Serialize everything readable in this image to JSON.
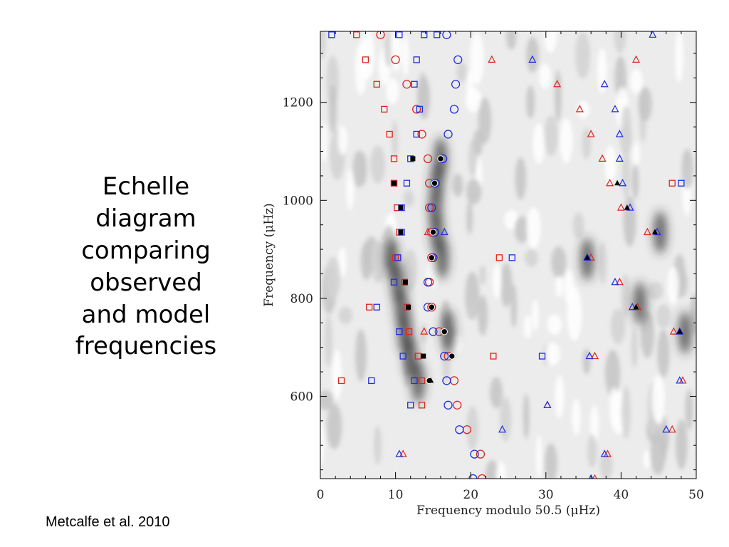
{
  "slide": {
    "title": "Echelle\ndiagram\ncomparing\nobserved\nand model\nfrequencies",
    "citation": "Metcalfe et al. 2010"
  },
  "chart_data": {
    "type": "scatter",
    "subtype": "echelle diagram over grayscale power-density contour background",
    "xlabel": "Frequency modulo 50.5 (μHz)",
    "ylabel": "Frequency (μHz)",
    "xlim": [
      0,
      50
    ],
    "ylim": [
      432,
      1345
    ],
    "x_ticks": [
      0,
      10,
      20,
      30,
      40,
      50
    ],
    "y_ticks": [
      600,
      800,
      1000,
      1200
    ],
    "grid": false,
    "legend": "none",
    "colors": {
      "red": "#e0261f",
      "blue": "#1f2ee0",
      "black": "#000000",
      "background_dark": "#3a3a3a"
    },
    "series": [
      {
        "marker": "circle",
        "color": "red",
        "points": [
          [
            8,
            1338
          ],
          [
            10,
            1287
          ],
          [
            11.5,
            1237
          ],
          [
            12.8,
            1186
          ],
          [
            13.5,
            1135
          ],
          [
            14.3,
            1085
          ],
          [
            14.5,
            1035
          ],
          [
            14.5,
            985
          ],
          [
            14.8,
            935
          ],
          [
            14.8,
            883
          ],
          [
            14.5,
            833
          ],
          [
            14.8,
            782
          ],
          [
            15.8,
            732
          ],
          [
            17,
            682
          ],
          [
            17.8,
            632
          ],
          [
            18.2,
            582
          ],
          [
            19.5,
            532
          ],
          [
            21.3,
            482
          ],
          [
            21.5,
            432
          ]
        ]
      },
      {
        "marker": "circle",
        "color": "blue",
        "points": [
          [
            16.8,
            1338
          ],
          [
            18.3,
            1287
          ],
          [
            18,
            1237
          ],
          [
            17.8,
            1186
          ],
          [
            17,
            1135
          ],
          [
            16.3,
            1085
          ],
          [
            15.3,
            1035
          ],
          [
            14.8,
            985
          ],
          [
            15.2,
            935
          ],
          [
            15,
            883
          ],
          [
            14.3,
            833
          ],
          [
            14.3,
            782
          ],
          [
            15,
            732
          ],
          [
            16.5,
            682
          ],
          [
            16.8,
            632
          ],
          [
            17,
            582
          ],
          [
            18.5,
            532
          ],
          [
            20.5,
            482
          ],
          [
            20.3,
            432
          ]
        ]
      },
      {
        "marker": "square",
        "color": "red",
        "points": [
          [
            4.8,
            1338
          ],
          [
            6,
            1287
          ],
          [
            7.5,
            1237
          ],
          [
            8.5,
            1186
          ],
          [
            9.2,
            1135
          ],
          [
            9.8,
            1085
          ],
          [
            9.8,
            1035
          ],
          [
            10.2,
            985
          ],
          [
            10.5,
            935
          ],
          [
            10,
            883
          ],
          [
            11.2,
            833
          ],
          [
            11.5,
            782
          ],
          [
            11.8,
            732
          ],
          [
            13,
            682
          ],
          [
            13.5,
            632
          ],
          [
            13.5,
            582
          ],
          [
            2.8,
            632
          ],
          [
            6.5,
            782
          ],
          [
            23.8,
            883
          ],
          [
            23,
            682
          ],
          [
            46.8,
            1035
          ]
        ]
      },
      {
        "marker": "square",
        "color": "blue",
        "points": [
          [
            1.5,
            1338
          ],
          [
            10.5,
            1338
          ],
          [
            13.8,
            1338
          ],
          [
            15.5,
            1338
          ],
          [
            12.8,
            1287
          ],
          [
            12.5,
            1237
          ],
          [
            13.2,
            1186
          ],
          [
            12.8,
            1135
          ],
          [
            12,
            1085
          ],
          [
            11.5,
            1035
          ],
          [
            10.8,
            985
          ],
          [
            10.8,
            935
          ],
          [
            10.3,
            883
          ],
          [
            9.8,
            833
          ],
          [
            7.5,
            782
          ],
          [
            10.5,
            732
          ],
          [
            11,
            682
          ],
          [
            12.5,
            632
          ],
          [
            12,
            582
          ],
          [
            6.8,
            632
          ],
          [
            25.5,
            883
          ],
          [
            29.5,
            682
          ],
          [
            48,
            1035
          ]
        ]
      },
      {
        "marker": "triangle",
        "color": "red",
        "points": [
          [
            22.8,
            1287
          ],
          [
            42,
            1287
          ],
          [
            31.5,
            1237
          ],
          [
            34.5,
            1186
          ],
          [
            36,
            1135
          ],
          [
            37.5,
            1085
          ],
          [
            38.5,
            1035
          ],
          [
            40,
            985
          ],
          [
            43.5,
            935
          ],
          [
            36,
            883
          ],
          [
            39.8,
            833
          ],
          [
            42.2,
            782
          ],
          [
            47,
            732
          ],
          [
            36.5,
            682
          ],
          [
            48.2,
            632
          ],
          [
            30.2,
            582
          ],
          [
            46.8,
            532
          ],
          [
            38.2,
            482
          ],
          [
            36.5,
            432
          ],
          [
            13.8,
            732
          ],
          [
            14.3,
            935
          ],
          [
            11,
            482
          ]
        ]
      },
      {
        "marker": "triangle",
        "color": "blue",
        "points": [
          [
            28.2,
            1287
          ],
          [
            37.8,
            1237
          ],
          [
            39.2,
            1186
          ],
          [
            39.8,
            1135
          ],
          [
            39.8,
            1085
          ],
          [
            40.2,
            1035
          ],
          [
            41.2,
            985
          ],
          [
            44.8,
            935
          ],
          [
            35.5,
            883
          ],
          [
            39.2,
            833
          ],
          [
            41.5,
            782
          ],
          [
            47.8,
            732
          ],
          [
            35.8,
            682
          ],
          [
            47.8,
            632
          ],
          [
            30.2,
            582
          ],
          [
            24.2,
            532
          ],
          [
            46,
            532
          ],
          [
            37.8,
            482
          ],
          [
            10.5,
            482
          ],
          [
            36,
            432
          ],
          [
            16.5,
            935
          ],
          [
            44.2,
            1338
          ]
        ]
      },
      {
        "marker": "filled-circle",
        "color": "black",
        "points": [
          [
            16,
            1085
          ],
          [
            15.2,
            1035
          ],
          [
            15,
            935
          ],
          [
            14.8,
            883
          ],
          [
            14.8,
            782
          ],
          [
            16.5,
            732
          ],
          [
            17.5,
            682
          ],
          [
            14.5,
            632
          ]
        ]
      },
      {
        "marker": "filled-square",
        "color": "black",
        "points": [
          [
            12.3,
            1085
          ],
          [
            9.8,
            1035
          ],
          [
            10.7,
            985
          ],
          [
            10.7,
            935
          ],
          [
            11.3,
            833
          ],
          [
            11.7,
            782
          ],
          [
            13.7,
            682
          ]
        ]
      },
      {
        "marker": "filled-triangle",
        "color": "black",
        "points": [
          [
            39.5,
            1035
          ],
          [
            40.8,
            985
          ],
          [
            44.5,
            935
          ],
          [
            35.5,
            883
          ],
          [
            42,
            782
          ],
          [
            47.8,
            732
          ],
          [
            14.7,
            632
          ]
        ]
      }
    ],
    "background_ridges": [
      {
        "x": [
          9.5,
          10.3,
          10.8,
          11.2,
          12,
          13
        ],
        "y": [
          880,
          830,
          780,
          730,
          680,
          630
        ],
        "intensity": "dark"
      },
      {
        "x": [
          16,
          15.5,
          15.3,
          15.5,
          16.2,
          17
        ],
        "y": [
          1085,
          1035,
          985,
          935,
          883,
          733
        ],
        "intensity": "dark"
      },
      {
        "x": [
          35.5
        ],
        "y": [
          880
        ],
        "intensity": "dark"
      },
      {
        "x": [
          45.2
        ],
        "y": [
          935
        ],
        "intensity": "dark"
      },
      {
        "x": [
          42.5
        ],
        "y": [
          790
        ],
        "intensity": "dark"
      },
      {
        "x": [
          48.5
        ],
        "y": [
          730
        ],
        "intensity": "dark"
      }
    ]
  }
}
